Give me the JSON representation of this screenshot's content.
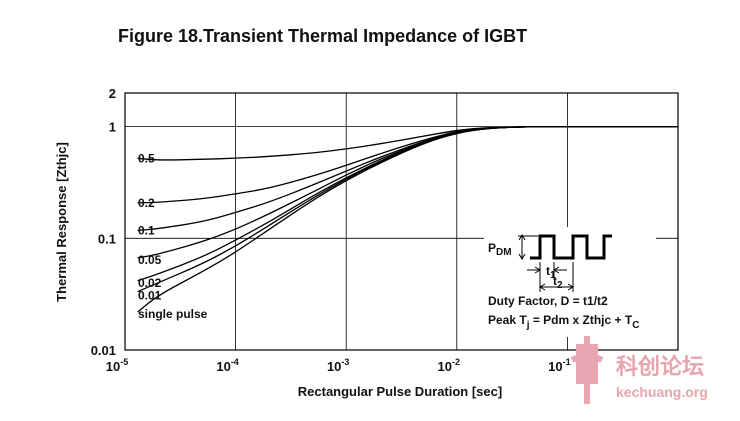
{
  "chart_data": {
    "type": "line",
    "title": "Figure 18.Transient Thermal Impedance of IGBT",
    "xlabel": "Rectangular Pulse Duration [sec]",
    "ylabel": "Thermal Response [Zthjc]",
    "x_scale": "log",
    "y_scale": "log",
    "xlim": [
      1e-05,
      1
    ],
    "ylim": [
      0.01,
      2
    ],
    "grid": true,
    "x_ticks": [
      {
        "base": "10",
        "exp": "-5",
        "value": 1e-05
      },
      {
        "base": "10",
        "exp": "-4",
        "value": 0.0001
      },
      {
        "base": "10",
        "exp": "-3",
        "value": 0.001
      },
      {
        "base": "10",
        "exp": "-2",
        "value": 0.01
      },
      {
        "base": "10",
        "exp": "-1",
        "value": 0.1
      }
    ],
    "y_ticks": [
      {
        "label": "2",
        "value": 2
      },
      {
        "label": "1",
        "value": 1
      },
      {
        "label": "0.1",
        "value": 0.1
      },
      {
        "label": "0.01",
        "value": 0.01
      }
    ],
    "x": [
      1e-05,
      2e-05,
      5e-05,
      0.0001,
      0.0002,
      0.0005,
      0.001,
      0.002,
      0.005,
      0.01,
      0.02,
      0.05,
      0.1,
      1
    ],
    "series": [
      {
        "name": "0.5",
        "values": [
          0.5,
          0.5,
          0.51,
          0.52,
          0.54,
          0.58,
          0.63,
          0.7,
          0.82,
          0.93,
          0.985,
          1.0,
          1.0,
          1.0
        ]
      },
      {
        "name": "0.2",
        "values": [
          0.2,
          0.21,
          0.225,
          0.25,
          0.28,
          0.36,
          0.45,
          0.57,
          0.76,
          0.91,
          0.98,
          1.0,
          1.0,
          1.0
        ]
      },
      {
        "name": "0.1",
        "values": [
          0.113,
          0.122,
          0.14,
          0.17,
          0.21,
          0.3,
          0.4,
          0.53,
          0.74,
          0.9,
          0.98,
          1.0,
          1.0,
          1.0
        ]
      },
      {
        "name": "0.05",
        "values": [
          0.064,
          0.072,
          0.093,
          0.12,
          0.165,
          0.26,
          0.37,
          0.51,
          0.73,
          0.89,
          0.975,
          1.0,
          1.0,
          1.0
        ]
      },
      {
        "name": "0.02",
        "values": [
          0.04,
          0.048,
          0.068,
          0.096,
          0.14,
          0.24,
          0.35,
          0.49,
          0.72,
          0.89,
          0.975,
          1.0,
          1.0,
          1.0
        ]
      },
      {
        "name": "0.01",
        "values": [
          0.032,
          0.04,
          0.059,
          0.085,
          0.13,
          0.23,
          0.34,
          0.48,
          0.71,
          0.88,
          0.975,
          1.0,
          1.0,
          1.0
        ]
      },
      {
        "name": "single pulse",
        "values": [
          0.021,
          0.031,
          0.05,
          0.075,
          0.12,
          0.22,
          0.33,
          0.47,
          0.71,
          0.88,
          0.975,
          1.0,
          1.0,
          1.0
        ]
      }
    ],
    "inset": {
      "pdm_main": "P",
      "pdm_sub": "DM",
      "t1_main": "t",
      "t1_sub": "1",
      "t2_main": "t",
      "t2_sub": "2",
      "duty_factor": "Duty Factor, D = t1/t2",
      "peak_prefix": "Peak T",
      "peak_sub_j": "j",
      "peak_middle": " = Pdm x Zthjc + T",
      "peak_sub_c": "C"
    }
  },
  "watermark": {
    "text": "科创论坛",
    "url": "kechuang.org",
    "color": "#e6a5ad"
  }
}
